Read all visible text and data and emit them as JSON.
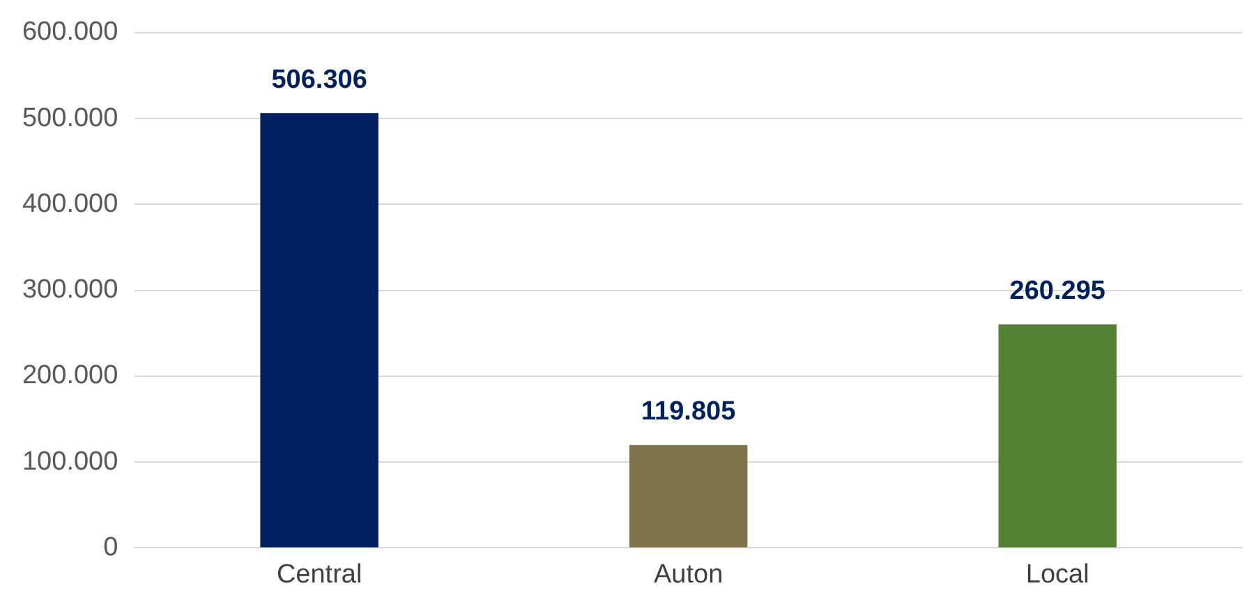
{
  "chart_data": {
    "type": "bar",
    "categories": [
      "Central",
      "Auton",
      "Local"
    ],
    "values": [
      506306,
      119805,
      260295
    ],
    "colors": [
      "#002060",
      "#7f7349",
      "#548235"
    ],
    "value_labels": [
      "506.306",
      "119.805",
      "260.295"
    ],
    "ylim": [
      0,
      600000
    ],
    "yticks": [
      {
        "value": 0,
        "label": "0"
      },
      {
        "value": 100000,
        "label": "100.000"
      },
      {
        "value": 200000,
        "label": "200.000"
      },
      {
        "value": 300000,
        "label": "300.000"
      },
      {
        "value": 400000,
        "label": "400.000"
      },
      {
        "value": 500000,
        "label": "500.000"
      },
      {
        "value": 600000,
        "label": "600.000"
      }
    ],
    "grid": "y",
    "legend": false
  }
}
